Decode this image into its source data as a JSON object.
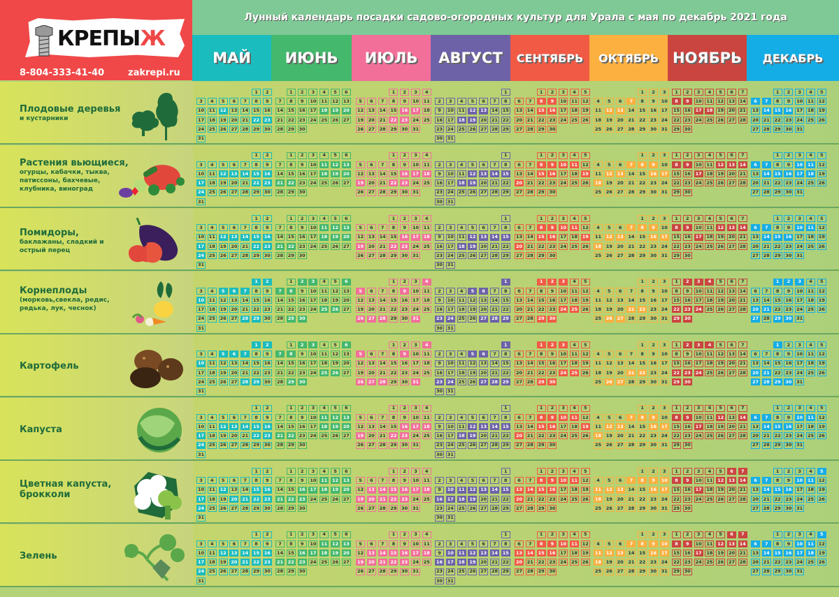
{
  "brand": {
    "logo_text": "КРЕПЫЖ",
    "phone": "8-804-333-41-40",
    "site": "zakrepi.ru"
  },
  "title": "Лунный календарь посадки садово-огородных культур для Урала с мая по декабрь 2021 года",
  "months": [
    {
      "name": "МАЙ",
      "color": "#1bbcbd"
    },
    {
      "name": "ИЮНЬ",
      "color": "#44b86d"
    },
    {
      "name": "ИЮЛЬ",
      "color": "#f26f9a"
    },
    {
      "name": "АВГУСТ",
      "color": "#6d62a8"
    },
    {
      "name": "СЕНТЯБРЬ",
      "color": "#f15a45"
    },
    {
      "name": "ОКТЯБРЬ",
      "color": "#fbb040"
    },
    {
      "name": "НОЯБРЬ",
      "color": "#cb4540"
    },
    {
      "name": "ДЕКАБРЬ",
      "color": "#15ade6"
    }
  ],
  "crops": [
    {
      "title": "Плодовые деревья",
      "subtitle": "и кустарники",
      "icon": "tree-icon",
      "good_days": [
        [
          12,
          22,
          23
        ],
        [
          18,
          19,
          20
        ],
        [
          16,
          17,
          22,
          23
        ],
        [
          12,
          13,
          18,
          19
        ],
        [
          8,
          9,
          15,
          16
        ],
        [
          7,
          12,
          13
        ],
        [
          8,
          9,
          17,
          18
        ],
        [
          6,
          7,
          14,
          15,
          16
        ]
      ]
    },
    {
      "title": "Растения вьющиеся,",
      "subtitle": "огурцы, кабачки, тыква, патиссоны, бахчевые, клубника, виноград",
      "icon": "climbing-plants-icon",
      "good_days": [
        [
          12,
          13,
          14,
          15,
          16,
          17,
          22,
          23,
          24
        ],
        [
          11,
          12,
          13,
          18,
          19,
          20,
          21,
          22
        ],
        [
          16,
          17,
          18,
          19,
          22,
          23
        ],
        [
          12,
          13,
          14,
          15,
          18,
          19
        ],
        [
          8,
          9,
          10,
          11,
          15,
          16,
          19,
          20
        ],
        [
          7,
          8,
          9,
          12,
          13,
          16,
          17,
          18
        ],
        [
          8,
          9,
          12,
          13,
          14,
          17
        ],
        [
          6,
          7,
          10,
          11,
          14,
          15,
          16,
          17,
          18
        ]
      ]
    },
    {
      "title": "Помидоры,",
      "subtitle": "баклажаны, сладкий и острый перец",
      "icon": "eggplant-pepper-icon",
      "good_days": [
        [
          12,
          13,
          14,
          15,
          16,
          17,
          22,
          23,
          24
        ],
        [
          11,
          12,
          13,
          18,
          19,
          20,
          21,
          22
        ],
        [
          16,
          17,
          18,
          19,
          22,
          23
        ],
        [
          12,
          13,
          14,
          15,
          18,
          19
        ],
        [
          8,
          9,
          10,
          11,
          15,
          16,
          19,
          20
        ],
        [
          7,
          8,
          9,
          12,
          13,
          16,
          17,
          18
        ],
        [
          8,
          9,
          12,
          13,
          14,
          17
        ],
        [
          6,
          7,
          10,
          11,
          14,
          15,
          16
        ]
      ]
    },
    {
      "title": "Корнеплоды",
      "subtitle": "(морковь,свекла, редис, редька, лук, чеснок)",
      "icon": "root-vegetables-icon",
      "good_days": [
        [
          1,
          2,
          5,
          6,
          7,
          10,
          28,
          29
        ],
        [
          2,
          3,
          6,
          7,
          8,
          25,
          26,
          29,
          30
        ],
        [
          4,
          5,
          9,
          26,
          27,
          28,
          31
        ],
        [
          1,
          5,
          6,
          23,
          24,
          27,
          28,
          29
        ],
        [
          1,
          2,
          3,
          24,
          25,
          29,
          30
        ],
        [
          21,
          22,
          26,
          27
        ],
        [
          2,
          3,
          4,
          22,
          23,
          24,
          29,
          30
        ],
        [
          1,
          2,
          3,
          20,
          21,
          27,
          29,
          30
        ]
      ]
    },
    {
      "title": "Картофель",
      "subtitle": "",
      "icon": "potato-icon",
      "good_days": [
        [
          1,
          2,
          5,
          6,
          7,
          10,
          28,
          29
        ],
        [
          2,
          3,
          6,
          7,
          8,
          25,
          26,
          29,
          30
        ],
        [
          4,
          5,
          9,
          26,
          27,
          28,
          31
        ],
        [
          1,
          5,
          6,
          23,
          24,
          27,
          28,
          29
        ],
        [
          1,
          2,
          3,
          24,
          25,
          29,
          30
        ],
        [
          21,
          22,
          26,
          27
        ],
        [
          2,
          3,
          4,
          22,
          23,
          24,
          29,
          30
        ],
        [
          1,
          20,
          21,
          27,
          28,
          29,
          30
        ]
      ]
    },
    {
      "title": "Капуста",
      "subtitle": "",
      "icon": "cabbage-icon",
      "good_days": [
        [
          12,
          13,
          14,
          15,
          16,
          17,
          22,
          23,
          24
        ],
        [
          11,
          12,
          13,
          18,
          19,
          20,
          21,
          22
        ],
        [
          16,
          17,
          18,
          19,
          22,
          23
        ],
        [
          12,
          13,
          14,
          15,
          18,
          19
        ],
        [
          8,
          9,
          10,
          11,
          15,
          16,
          19,
          20
        ],
        [
          7,
          8,
          9,
          12,
          13,
          16,
          17,
          18
        ],
        [
          8,
          9,
          12,
          14,
          17
        ],
        [
          6,
          7,
          10,
          11,
          14,
          15,
          16
        ]
      ]
    },
    {
      "title": "Цветная капуста, брокколи",
      "subtitle": "",
      "icon": "cauliflower-broccoli-icon",
      "good_days": [
        [
          12,
          15,
          16,
          17,
          20,
          21,
          22,
          23,
          24
        ],
        [
          11,
          12,
          13,
          16,
          17,
          18,
          19,
          20,
          21,
          22,
          23
        ],
        [
          13,
          14,
          15,
          16,
          17,
          18,
          19,
          20,
          21,
          22,
          23
        ],
        [
          10,
          11,
          12,
          13,
          14,
          15,
          16,
          17,
          18,
          19
        ],
        [
          8,
          9,
          10,
          11,
          13,
          14,
          15,
          16,
          20
        ],
        [
          7,
          8,
          9,
          10,
          11,
          12,
          13,
          16,
          17,
          18
        ],
        [
          6,
          7,
          8,
          9,
          12,
          13,
          14,
          17
        ],
        [
          5,
          6,
          7,
          10,
          11,
          14,
          15,
          16
        ]
      ]
    },
    {
      "title": "Зелень",
      "subtitle": "",
      "icon": "herbs-icon",
      "good_days": [
        [
          12,
          13,
          14,
          15,
          16,
          17,
          20,
          21,
          22,
          23,
          24
        ],
        [
          11,
          12,
          13,
          16,
          17,
          18,
          19,
          20,
          21,
          22,
          23
        ],
        [
          13,
          14,
          15,
          16,
          17,
          18,
          19,
          20,
          21,
          22,
          23
        ],
        [
          10,
          11,
          12,
          13,
          14,
          15,
          16,
          17,
          18,
          19
        ],
        [
          8,
          9,
          10,
          11,
          13,
          14,
          15,
          16,
          20
        ],
        [
          7,
          8,
          9,
          10,
          11,
          12,
          13,
          16,
          17,
          18
        ],
        [
          6,
          7,
          8,
          9,
          12,
          13,
          14,
          17
        ],
        [
          5,
          6,
          7,
          10,
          11,
          14,
          15,
          16,
          17,
          18
        ]
      ]
    }
  ]
}
